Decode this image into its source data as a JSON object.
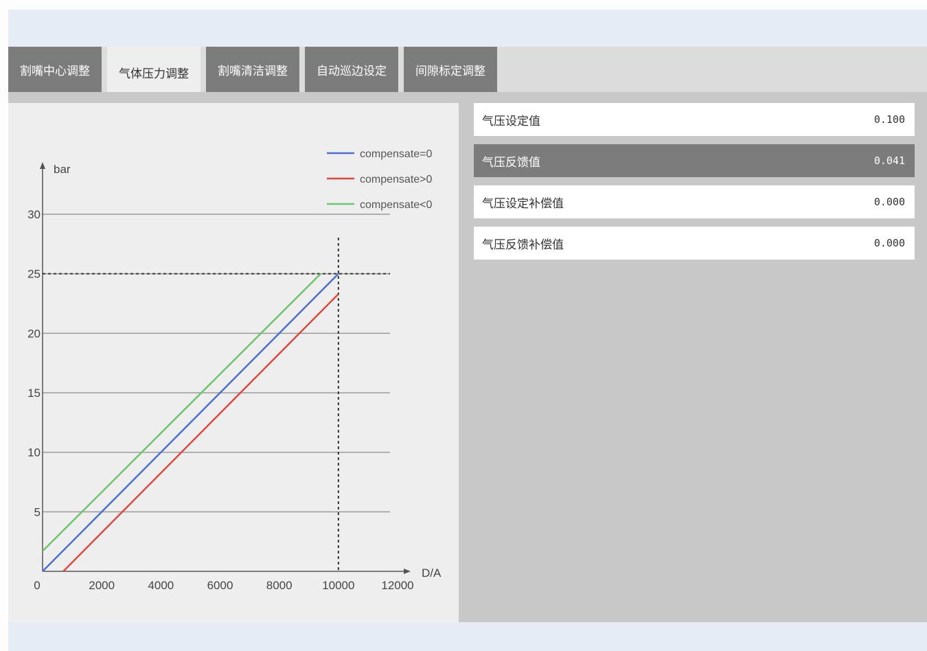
{
  "tabs": [
    {
      "label": "割嘴中心调整"
    },
    {
      "label": "气体压力调整"
    },
    {
      "label": "割嘴清洁调整"
    },
    {
      "label": "自动巡边设定"
    },
    {
      "label": "间隙标定调整"
    }
  ],
  "active_tab": 1,
  "fields": [
    {
      "label": "气压设定值",
      "value": "0.100"
    },
    {
      "label": "气压反馈值",
      "value": "0.041"
    },
    {
      "label": "气压设定补偿值",
      "value": "0.000"
    },
    {
      "label": "气压反馈补偿值",
      "value": "0.000"
    }
  ],
  "selected_field": 1,
  "chart_data": {
    "type": "line",
    "xlabel": "D/A",
    "ylabel": "bar",
    "xlim": [
      0,
      12000
    ],
    "ylim": [
      0,
      30
    ],
    "x_ticks": [
      "0",
      "2000",
      "4000",
      "6000",
      "8000",
      "10000",
      "12000"
    ],
    "y_ticks": [
      "5",
      "10",
      "15",
      "20",
      "25",
      "30"
    ],
    "grid": "horizontal",
    "legend_position": "top-right",
    "reference_lines": {
      "x": 10000,
      "y": 25
    },
    "series": [
      {
        "name": "compensate=0",
        "color": "#4a6fd0",
        "points": [
          [
            0,
            0
          ],
          [
            10000,
            25
          ]
        ]
      },
      {
        "name": "compensate>0",
        "color": "#e0473c",
        "points": [
          [
            700,
            0
          ],
          [
            10000,
            23.3
          ]
        ]
      },
      {
        "name": "compensate<0",
        "color": "#6cc46c",
        "points": [
          [
            0,
            1.7
          ],
          [
            9400,
            25
          ]
        ]
      }
    ]
  }
}
